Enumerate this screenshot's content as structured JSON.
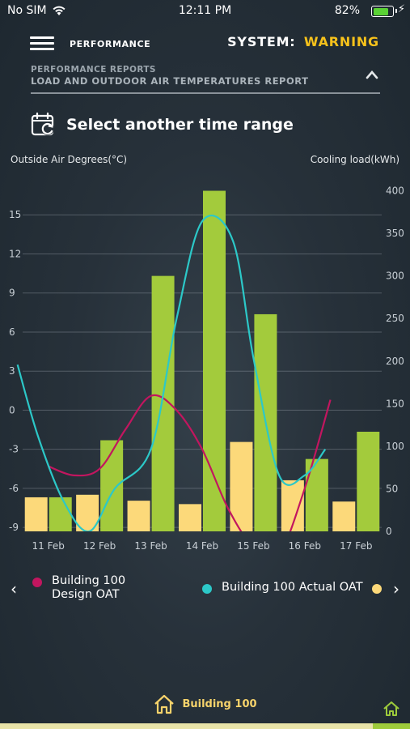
{
  "status_bar": {
    "carrier": "No SIM",
    "time": "12:11 PM",
    "battery": "82%",
    "battery_level": 0.82
  },
  "header": {
    "title": "PERFORMANCE",
    "system_label": "SYSTEM:",
    "system_value": "WARNING"
  },
  "report": {
    "caption": "PERFORMANCE REPORTS",
    "name": "LOAD AND OUTDOOR AIR TEMPERATURES REPORT"
  },
  "time_range": {
    "label": "Select another time range"
  },
  "axes": {
    "left_title": "Outside Air Degrees(°C)",
    "right_title": "Cooling load(kWh)"
  },
  "colors": {
    "design_oat": "#c2165f",
    "actual_oat": "#2cc8c8",
    "bar_yellow": "#fcd97a",
    "bar_green": "#a3cb3c",
    "warning": "#f7c21b"
  },
  "legend": {
    "items": [
      {
        "name": "Building 100\nDesign OAT",
        "color": "#c2165f"
      },
      {
        "name": "Building 100 Actual OAT",
        "color": "#2cc8c8"
      },
      {
        "name": "",
        "color": "#fcd97a"
      }
    ]
  },
  "chart_data": {
    "type": "bar",
    "categories": [
      "11 Feb",
      "12 Feb",
      "13 Feb",
      "14 Feb",
      "15 Feb",
      "16 Feb",
      "17 Feb"
    ],
    "y_left": {
      "ticks": [
        -9,
        -6,
        -3,
        0,
        3,
        6,
        9,
        12,
        15
      ],
      "range": [
        -9.3,
        17.5
      ]
    },
    "y_right": {
      "ticks": [
        0,
        50,
        100,
        150,
        200,
        250,
        300,
        350,
        400
      ],
      "range": [
        0,
        410
      ]
    },
    "bar_series": [
      {
        "color": "#fcd97a",
        "axis": "right",
        "values": [
          40,
          43,
          36,
          32,
          105,
          60,
          35
        ]
      },
      {
        "color": "#a3cb3c",
        "axis": "right",
        "values": [
          40,
          107,
          300,
          400,
          255,
          85,
          117
        ]
      }
    ],
    "line_series": [
      {
        "name": "Building 100 Design OAT",
        "color": "#c2165f",
        "axis": "left",
        "x": [
          0,
          0.5,
          1,
          1.5,
          2,
          2.5,
          3,
          3.5,
          4,
          4.5,
          5,
          5.5
        ],
        "values": [
          -4.3,
          -5,
          -4.5,
          -1.5,
          1.1,
          0,
          -3,
          -7.5,
          -10.5,
          -11,
          -6,
          0.8
        ]
      },
      {
        "name": "Building 100 Actual OAT",
        "color": "#2cc8c8",
        "axis": "left",
        "x": [
          -0.6,
          -0.2,
          0.3,
          0.8,
          1.3,
          2,
          2.5,
          3,
          3.6,
          4,
          4.5,
          5,
          5.4
        ],
        "values": [
          3.5,
          -2,
          -7,
          -9.3,
          -6,
          -3,
          7,
          14.5,
          13,
          4,
          -5,
          -5,
          -3
        ]
      }
    ],
    "legend_position": "bottom"
  },
  "footer": {
    "building": "Building 100"
  }
}
